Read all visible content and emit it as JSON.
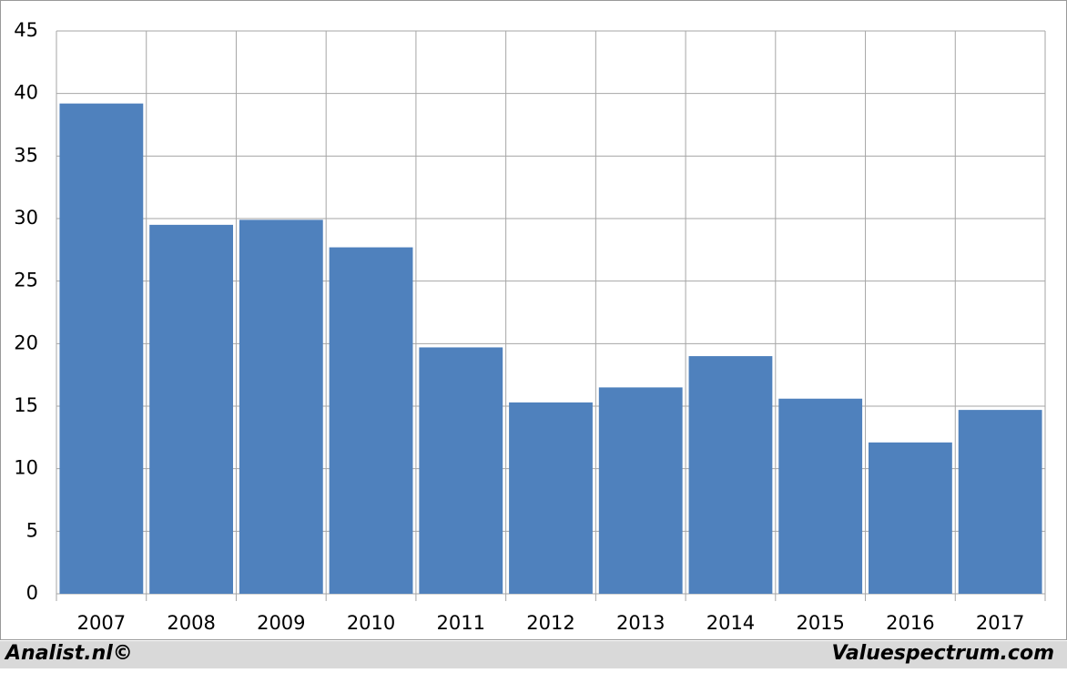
{
  "chart_data": {
    "type": "bar",
    "categories": [
      "2007",
      "2008",
      "2009",
      "2010",
      "2011",
      "2012",
      "2013",
      "2014",
      "2015",
      "2016",
      "2017"
    ],
    "values": [
      39.2,
      29.5,
      29.9,
      27.7,
      19.7,
      15.3,
      16.5,
      19.0,
      15.6,
      12.1,
      14.7
    ],
    "color": "#4f81bd",
    "ylim": [
      0,
      45
    ],
    "yticks": [
      0,
      5,
      10,
      15,
      20,
      25,
      30,
      35,
      40,
      45
    ],
    "grid": true,
    "footer_left": "Analist.nl©",
    "footer_right": "Valuespectrum.com"
  }
}
